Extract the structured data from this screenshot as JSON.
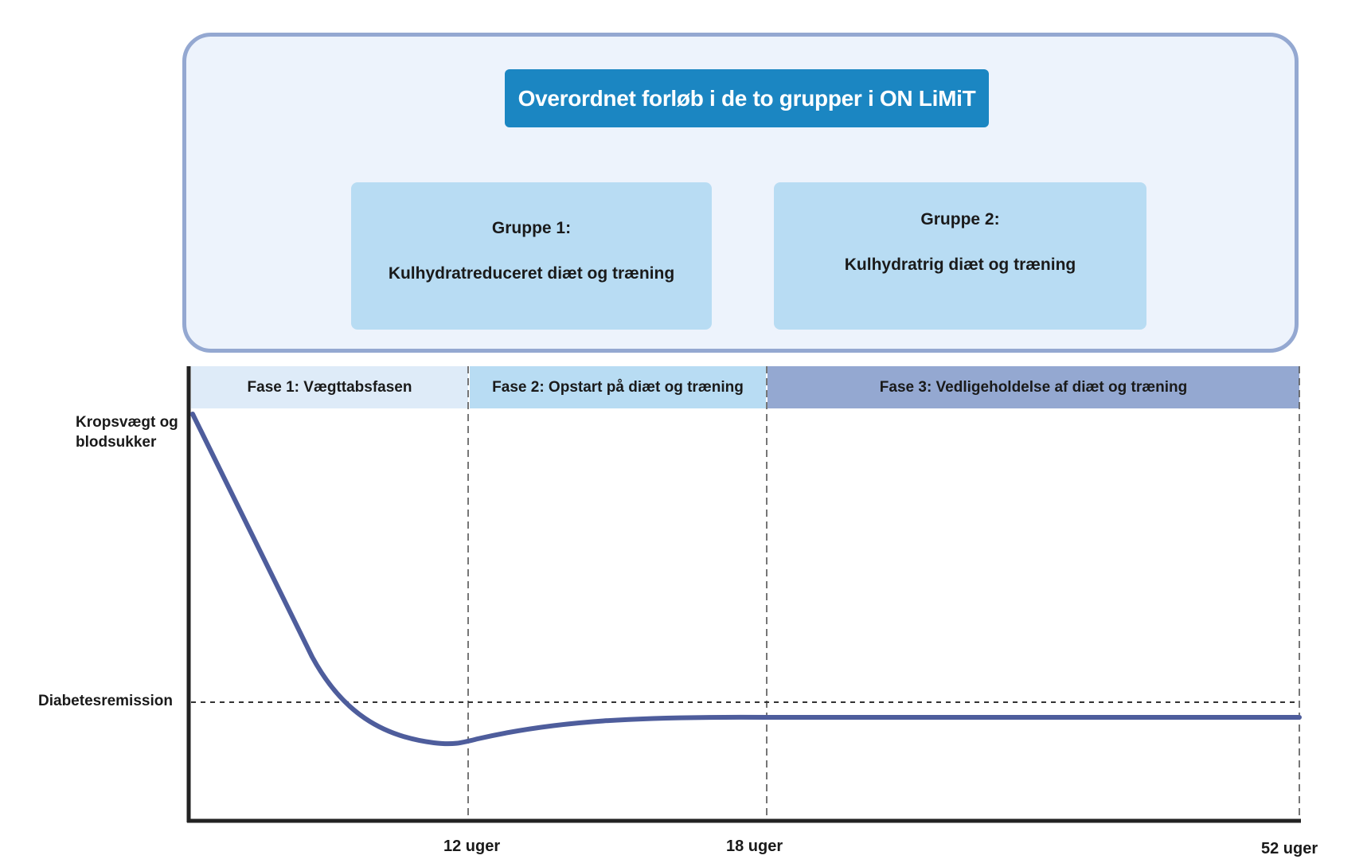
{
  "header": {
    "title": "Overordnet forløb i de to grupper i ON LiMiT"
  },
  "groups": [
    {
      "label": "Gruppe 1:",
      "description": "Kulhydratreduceret diæt og træning"
    },
    {
      "label": "Gruppe 2:",
      "description": "Kulhydratrig diæt og træning"
    }
  ],
  "phases": [
    {
      "label": "Fase 1: Vægttabsfasen",
      "color": "#deebf8"
    },
    {
      "label": "Fase 2: Opstart på diæt og træning",
      "color": "#b8dcf3"
    },
    {
      "label": "Fase 3: Vedligeholdelse af diæt og træning",
      "color": "#94a8d1"
    }
  ],
  "axis": {
    "y_top_label": "Kropsvægt og blodsukker",
    "y_remission_label": "Diabetesremission",
    "x_ticks": [
      "12 uger",
      "18 uger",
      "52 uger"
    ]
  },
  "colors": {
    "accent": "#1b86c2",
    "curve": "#4e5d9c",
    "panel_border": "#94a8d1",
    "panel_bg": "#edf3fc"
  }
}
